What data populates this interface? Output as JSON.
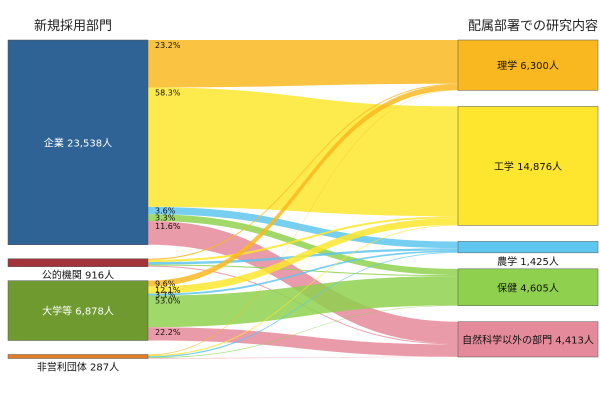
{
  "chart_data": {
    "type": "sankey",
    "left_header": "新規採用部門",
    "right_header": "配属部署での研究内容",
    "sources": [
      {
        "id": "corp",
        "label": "企業 23,538人",
        "value": 23538,
        "color": "#2f6295"
      },
      {
        "id": "pub",
        "label": "公的機関 916人",
        "value": 916,
        "color": "#a3333a"
      },
      {
        "id": "univ",
        "label": "大学等 6,878人",
        "value": 6878,
        "color": "#6f9a2f"
      },
      {
        "id": "npo",
        "label": "非営利団体 287人",
        "value": 287,
        "color": "#e07d26"
      }
    ],
    "targets": [
      {
        "id": "sci",
        "label": "理学 6,300人",
        "value": 6300,
        "color": "#f9b820"
      },
      {
        "id": "eng",
        "label": "工学 14,876人",
        "value": 14876,
        "color": "#fde62d"
      },
      {
        "id": "agr",
        "label": "農学 1,425人",
        "value": 1425,
        "color": "#5ec6ef"
      },
      {
        "id": "hlt",
        "label": "保健 4,605人",
        "value": 4605,
        "color": "#8fd14f"
      },
      {
        "id": "oth",
        "label": "自然科学以外の部門 4,413人",
        "value": 4413,
        "color": "#e58a9b"
      }
    ],
    "flows": [
      {
        "source": "corp",
        "target": "sci",
        "pct": "23.2%"
      },
      {
        "source": "corp",
        "target": "eng",
        "pct": "58.3%"
      },
      {
        "source": "corp",
        "target": "agr",
        "pct": "3.6%"
      },
      {
        "source": "corp",
        "target": "hlt",
        "pct": "3.3%"
      },
      {
        "source": "corp",
        "target": "oth",
        "pct": "11.6%"
      },
      {
        "source": "pub",
        "target": "sci",
        "pct": ""
      },
      {
        "source": "pub",
        "target": "eng",
        "pct": ""
      },
      {
        "source": "pub",
        "target": "agr",
        "pct": ""
      },
      {
        "source": "pub",
        "target": "hlt",
        "pct": ""
      },
      {
        "source": "pub",
        "target": "oth",
        "pct": ""
      },
      {
        "source": "univ",
        "target": "sci",
        "pct": "9.6%"
      },
      {
        "source": "univ",
        "target": "eng",
        "pct": "12.1%"
      },
      {
        "source": "univ",
        "target": "agr",
        "pct": "3.1%"
      },
      {
        "source": "univ",
        "target": "hlt",
        "pct": "53.0%"
      },
      {
        "source": "univ",
        "target": "oth",
        "pct": "22.2%"
      },
      {
        "source": "npo",
        "target": "sci",
        "pct": ""
      },
      {
        "source": "npo",
        "target": "eng",
        "pct": ""
      },
      {
        "source": "npo",
        "target": "agr",
        "pct": ""
      },
      {
        "source": "npo",
        "target": "hlt",
        "pct": ""
      },
      {
        "source": "npo",
        "target": "oth",
        "pct": ""
      }
    ]
  }
}
